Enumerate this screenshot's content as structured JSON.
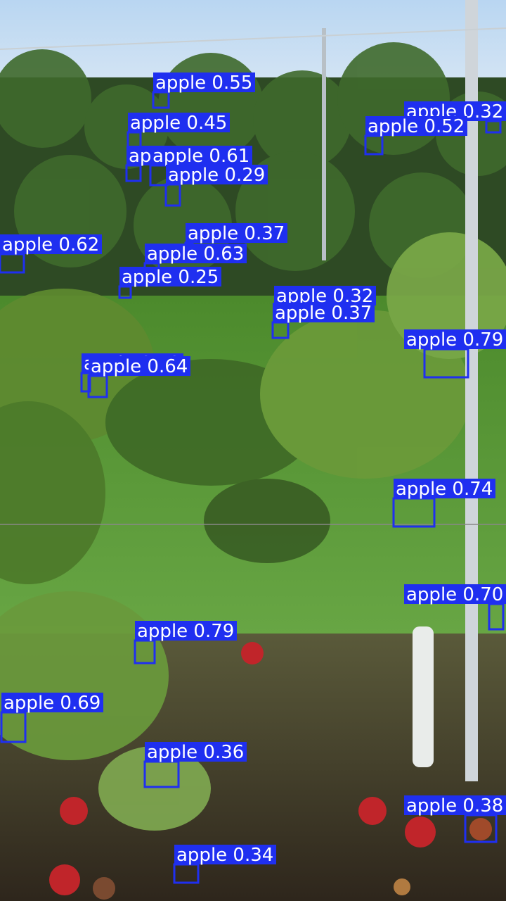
{
  "image": {
    "description_colors": {
      "sky": "#cfe3f4",
      "foliage_dark": "#2f4a22",
      "foliage_light": "#6f9a3c",
      "grass": "#5a9a3a",
      "soil": "#3b3024",
      "post": "#d8dde2"
    }
  },
  "detection_style": {
    "box_color": "#1f2ff0",
    "label_text_color": "#ffffff"
  },
  "detections": [
    {
      "label": "apple 0.55",
      "confidence": 0.55
    },
    {
      "label": "apple 0.45",
      "confidence": 0.45
    },
    {
      "label": "apple 0.71",
      "confidence": 0.71
    },
    {
      "label": "apple 0.61",
      "confidence": 0.61
    },
    {
      "label": "apple 0.29",
      "confidence": 0.29
    },
    {
      "label": "apple 0.32",
      "confidence": 0.32
    },
    {
      "label": "apple 0.52",
      "confidence": 0.52
    },
    {
      "label": "apple 0.37",
      "confidence": 0.37
    },
    {
      "label": "apple 0.62",
      "confidence": 0.62
    },
    {
      "label": "apple 0.63",
      "confidence": 0.63
    },
    {
      "label": "apple 0.25",
      "confidence": 0.25
    },
    {
      "label": "apple 0.32",
      "confidence": 0.32
    },
    {
      "label": "apple 0.37",
      "confidence": 0.37
    },
    {
      "label": "apple 0.79",
      "confidence": 0.79
    },
    {
      "label": "apple 0.72",
      "confidence": 0.72
    },
    {
      "label": "apple 0.64",
      "confidence": 0.64
    },
    {
      "label": "apple 0.74",
      "confidence": 0.74
    },
    {
      "label": "apple 0.70",
      "confidence": 0.7
    },
    {
      "label": "apple 0.79",
      "confidence": 0.79
    },
    {
      "label": "apple 0.64",
      "confidence": 0.64
    },
    {
      "label": "apple 0.69",
      "confidence": 0.69
    },
    {
      "label": "apple 0.36",
      "confidence": 0.36
    },
    {
      "label": "apple 0.38",
      "confidence": 0.38
    },
    {
      "label": "apple 0.34",
      "confidence": 0.34
    }
  ]
}
